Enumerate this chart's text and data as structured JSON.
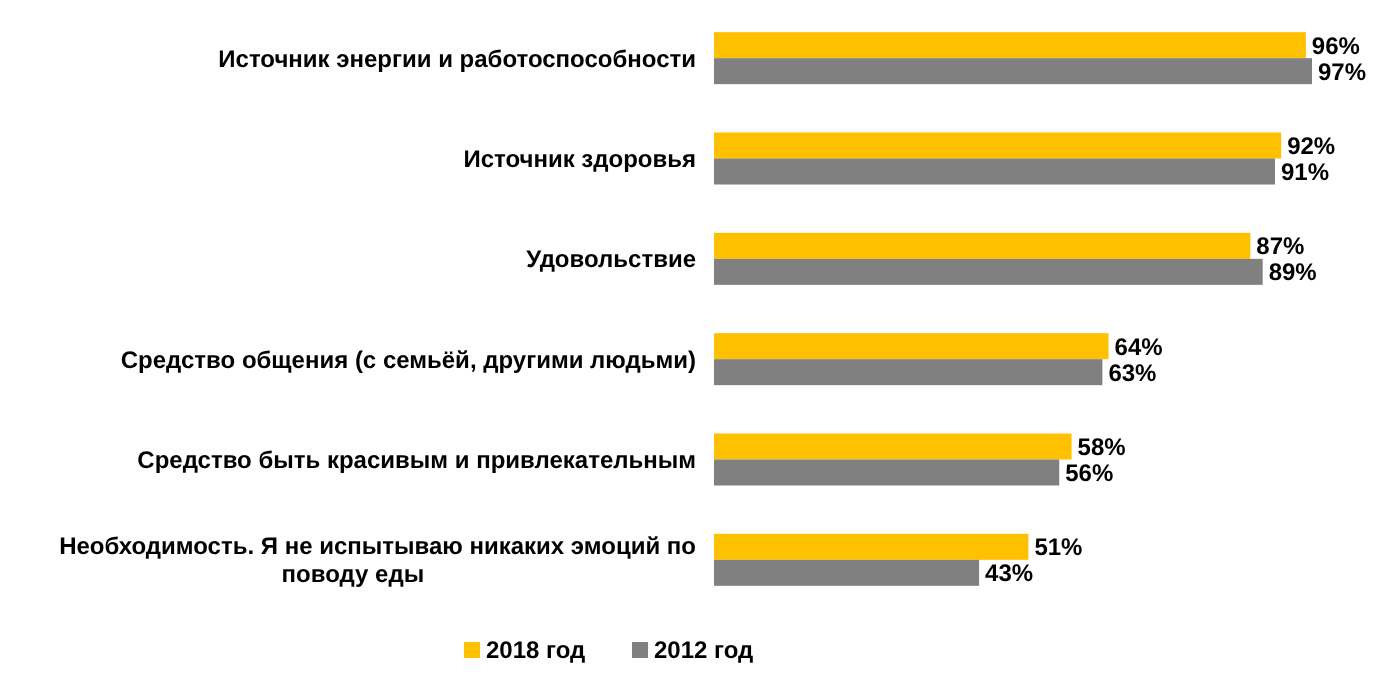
{
  "chart_data": {
    "type": "bar",
    "orientation": "horizontal",
    "categories": [
      "Источник энергии и работоспособности",
      "Источник здоровья",
      "Удовольствие",
      "Средство общения (с семьёй, другими людьми)",
      "Средство быть красивым и привлекательным",
      "Необходимость. Я не испытываю никаких эмоций по поводу еды"
    ],
    "series": [
      {
        "name": "2018 год",
        "color": "#ffc000",
        "values": [
          96,
          92,
          87,
          64,
          58,
          51
        ],
        "value_labels": [
          "96%",
          "92%",
          "87%",
          "64%",
          "58%",
          "51%"
        ]
      },
      {
        "name": "2012 год",
        "color": "#808080",
        "values": [
          97,
          91,
          89,
          63,
          56,
          43
        ],
        "value_labels": [
          "97%",
          "91%",
          "89%",
          "63%",
          "56%",
          "43%"
        ]
      }
    ],
    "legend": "bottom"
  }
}
